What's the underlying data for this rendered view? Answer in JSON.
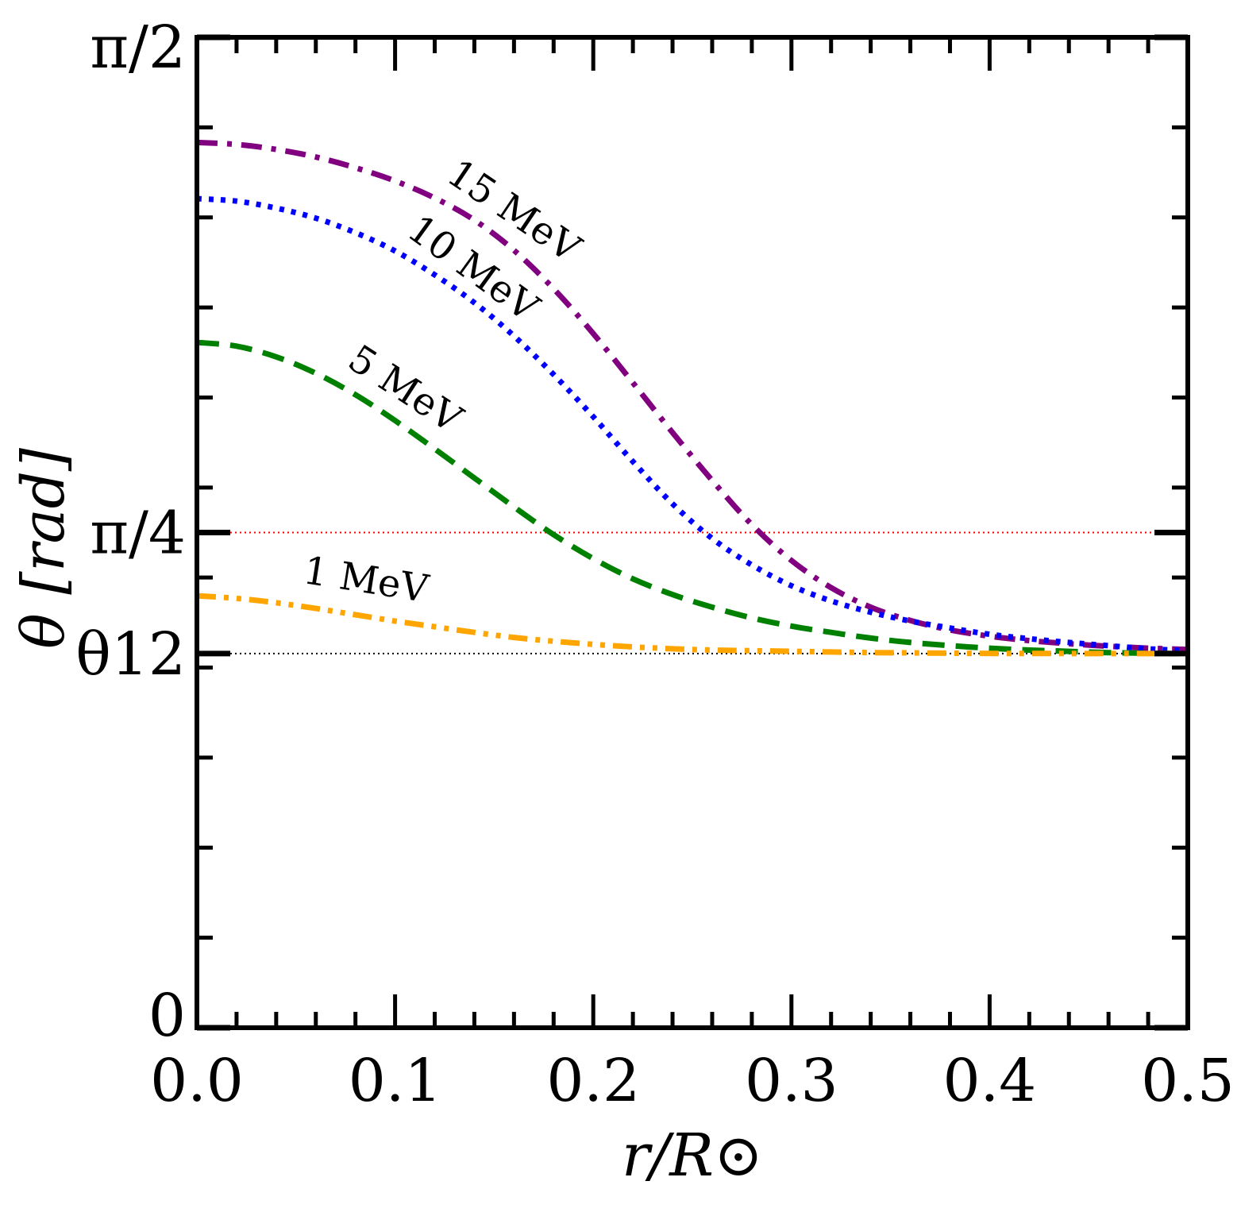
{
  "chart_data": {
    "type": "line",
    "title": "",
    "xlabel": "r/R⊙",
    "ylabel": "θ [rad]",
    "xlim": [
      0.0,
      0.5
    ],
    "ylim": [
      0.0,
      1.5708
    ],
    "x_ticks": [
      {
        "value": 0.0,
        "label": "0.0"
      },
      {
        "value": 0.1,
        "label": "0.1"
      },
      {
        "value": 0.2,
        "label": "0.2"
      },
      {
        "value": 0.3,
        "label": "0.3"
      },
      {
        "value": 0.4,
        "label": "0.4"
      },
      {
        "value": 0.5,
        "label": "0.5"
      }
    ],
    "y_ticks": [
      {
        "value": 0.0,
        "label": "0"
      },
      {
        "value": 0.5934,
        "label": "θ12"
      },
      {
        "value": 0.7854,
        "label": "π/4"
      },
      {
        "value": 1.5708,
        "label": "π/2"
      }
    ],
    "reference_lines": [
      {
        "name": "pi-over-4",
        "y": 0.7854,
        "color": "#ff0000"
      },
      {
        "name": "theta12",
        "y": 0.5934,
        "color": "#000000"
      }
    ],
    "series": [
      {
        "name": "15 MeV",
        "color": "#800080",
        "style": "dashdot",
        "x": [
          0.0,
          0.02,
          0.04,
          0.06,
          0.08,
          0.1,
          0.12,
          0.14,
          0.16,
          0.18,
          0.2,
          0.22,
          0.24,
          0.26,
          0.28,
          0.3,
          0.32,
          0.34,
          0.36,
          0.38,
          0.4,
          0.42,
          0.44,
          0.46,
          0.48,
          0.5
        ],
        "y": [
          1.404,
          1.401,
          1.393,
          1.381,
          1.364,
          1.343,
          1.316,
          1.281,
          1.233,
          1.172,
          1.101,
          1.023,
          0.944,
          0.868,
          0.798,
          0.741,
          0.698,
          0.667,
          0.646,
          0.631,
          0.621,
          0.614,
          0.609,
          0.605,
          0.602,
          0.6
        ]
      },
      {
        "name": "10 MeV",
        "color": "#0000ff",
        "style": "dotted",
        "x": [
          0.0,
          0.02,
          0.04,
          0.06,
          0.08,
          0.1,
          0.12,
          0.14,
          0.16,
          0.18,
          0.2,
          0.22,
          0.24,
          0.26,
          0.28,
          0.3,
          0.32,
          0.34,
          0.36,
          0.38,
          0.4,
          0.42,
          0.44,
          0.46,
          0.48,
          0.5
        ],
        "y": [
          1.315,
          1.311,
          1.3,
          1.284,
          1.261,
          1.232,
          1.194,
          1.15,
          1.097,
          1.036,
          0.969,
          0.898,
          0.831,
          0.776,
          0.734,
          0.701,
          0.677,
          0.659,
          0.645,
          0.634,
          0.624,
          0.617,
          0.611,
          0.606,
          0.601,
          0.598
        ]
      },
      {
        "name": "5 MeV",
        "color": "#008000",
        "style": "dashed",
        "x": [
          0.0,
          0.02,
          0.04,
          0.06,
          0.08,
          0.1,
          0.12,
          0.14,
          0.16,
          0.18,
          0.2,
          0.22,
          0.24,
          0.26,
          0.28,
          0.3,
          0.32,
          0.34,
          0.36,
          0.38,
          0.4,
          0.42,
          0.44,
          0.46,
          0.48,
          0.5
        ],
        "y": [
          1.087,
          1.081,
          1.064,
          1.038,
          1.004,
          0.963,
          0.918,
          0.872,
          0.826,
          0.782,
          0.744,
          0.712,
          0.687,
          0.667,
          0.65,
          0.637,
          0.627,
          0.618,
          0.611,
          0.606,
          0.602,
          0.599,
          0.597,
          0.595,
          0.594,
          0.593
        ]
      },
      {
        "name": "1 MeV",
        "color": "#ffa500",
        "style": "dashdotdot",
        "x": [
          0.0,
          0.02,
          0.04,
          0.06,
          0.08,
          0.1,
          0.12,
          0.14,
          0.16,
          0.18,
          0.2,
          0.22,
          0.24,
          0.26,
          0.28,
          0.3,
          0.32,
          0.34,
          0.36,
          0.38,
          0.4,
          0.42,
          0.44,
          0.46,
          0.48,
          0.5
        ],
        "y": [
          0.685,
          0.681,
          0.674,
          0.665,
          0.655,
          0.645,
          0.636,
          0.627,
          0.619,
          0.613,
          0.608,
          0.604,
          0.601,
          0.599,
          0.598,
          0.597,
          0.596,
          0.595,
          0.5945,
          0.594,
          0.5937,
          0.5936,
          0.5935,
          0.5935,
          0.5934,
          0.5934
        ]
      }
    ],
    "annotations": [
      {
        "text": "15 MeV",
        "series": "15 MeV"
      },
      {
        "text": "10 MeV",
        "series": "10 MeV"
      },
      {
        "text": "5 MeV",
        "series": "5 MeV"
      },
      {
        "text": "1 MeV",
        "series": "1 MeV"
      }
    ]
  }
}
